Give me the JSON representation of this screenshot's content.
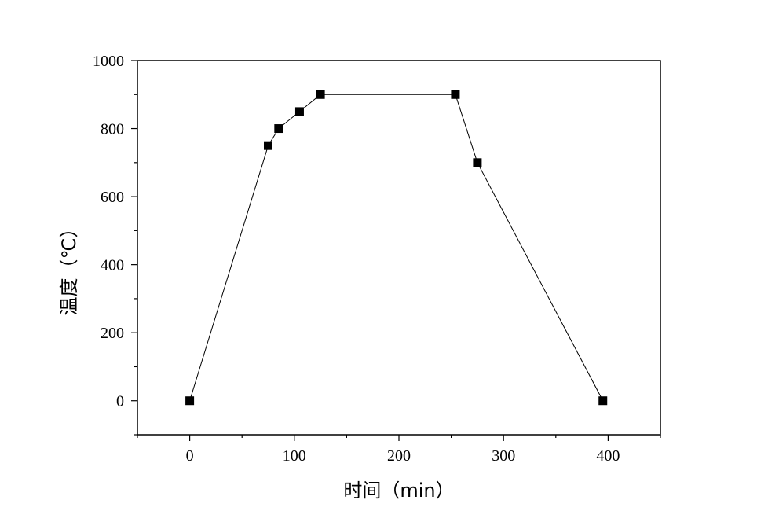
{
  "chart_data": {
    "type": "line",
    "title": "",
    "xlabel": "时间（min）",
    "ylabel": "温度（℃）",
    "xlim": [
      -50,
      450
    ],
    "ylim": [
      -100,
      1000
    ],
    "x_ticks": [
      "0",
      "100",
      "200",
      "300",
      "400"
    ],
    "y_ticks": [
      "0",
      "200",
      "400",
      "600",
      "800",
      "1000"
    ],
    "grid": false,
    "legend": "none",
    "marker": "square",
    "color": "#000000",
    "series": [
      {
        "x": [
          0,
          75,
          85,
          105,
          125,
          254,
          275,
          395
        ],
        "y": [
          0,
          750,
          800,
          850,
          900,
          900,
          700,
          0
        ]
      }
    ]
  }
}
